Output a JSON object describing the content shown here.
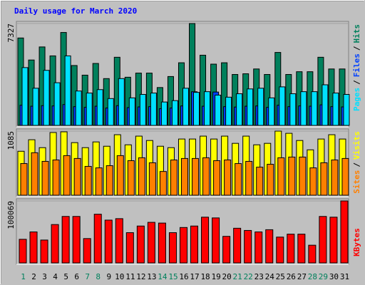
{
  "title": "Daily usage for March 2020",
  "legend_separator": "/",
  "chart_data": [
    {
      "type": "bar",
      "ylim": [
        0,
        7327
      ],
      "yticks": [
        7327
      ],
      "series": [
        {
          "name": "Hits",
          "color": "#00805c",
          "values": [
            6287,
            4703,
            5643,
            5000,
            6683,
            4307,
            3614,
            4455,
            3366,
            4901,
            3465,
            3762,
            3762,
            2723,
            3515,
            4505,
            7327,
            5049,
            4406,
            4505,
            3663,
            3713,
            4059,
            3663,
            5247,
            3663,
            3861,
            3861,
            4901,
            4059,
            4059
          ]
        },
        {
          "name": "Files",
          "color": "#0040ff",
          "values": [
            1450,
            1380,
            1420,
            1400,
            1500,
            1350,
            1300,
            1380,
            1250,
            1420,
            1280,
            1330,
            1350,
            1200,
            1250,
            1400,
            2420,
            1380,
            2400,
            1350,
            1320,
            1380,
            1400,
            1300,
            1450,
            1350,
            1400,
            1380,
            1480,
            1350,
            1330
          ]
        },
        {
          "name": "Pages",
          "color": "#00e0ff",
          "values": [
            4158,
            2673,
            3960,
            3069,
            5000,
            2475,
            2327,
            2574,
            1931,
            3366,
            1980,
            2228,
            2327,
            1683,
            1782,
            2673,
            2376,
            2426,
            2178,
            2030,
            2277,
            2624,
            2673,
            1980,
            2772,
            2277,
            2426,
            2426,
            2921,
            2327,
            2228
          ]
        }
      ]
    },
    {
      "type": "bar",
      "ylim": [
        0,
        1085
      ],
      "yticks": [
        1085
      ],
      "series": [
        {
          "name": "Visits",
          "color": "#ffff00",
          "values": [
            744,
            939,
            805,
            1061,
            1073,
            890,
            805,
            902,
            829,
            1024,
            853,
            1000,
            926,
            829,
            805,
            951,
            951,
            1000,
            951,
            1000,
            878,
            1000,
            853,
            878,
            1085,
            1048,
            926,
            768,
            951,
            1024,
            951
          ]
        },
        {
          "name": "Sites",
          "color": "#ff8000",
          "values": [
            536,
            719,
            573,
            597,
            670,
            622,
            488,
            463,
            500,
            670,
            585,
            634,
            549,
            402,
            597,
            622,
            622,
            634,
            585,
            597,
            536,
            573,
            475,
            524,
            634,
            646,
            646,
            463,
            549,
            597,
            622
          ]
        }
      ]
    },
    {
      "type": "bar",
      "ylim": [
        0,
        100069
      ],
      "yticks": [
        100069
      ],
      "categories": [
        "1",
        "2",
        "3",
        "4",
        "5",
        "6",
        "7",
        "8",
        "9",
        "10",
        "11",
        "12",
        "13",
        "14",
        "15",
        "16",
        "17",
        "18",
        "19",
        "20",
        "21",
        "22",
        "23",
        "24",
        "25",
        "26",
        "27",
        "28",
        "29",
        "30",
        "31"
      ],
      "category_colors": [
        "#00805c",
        "#000000",
        "#000000",
        "#000000",
        "#000000",
        "#000000",
        "#00805c",
        "#00805c",
        "#000000",
        "#000000",
        "#000000",
        "#000000",
        "#000000",
        "#00805c",
        "#00805c",
        "#000000",
        "#000000",
        "#000000",
        "#000000",
        "#000000",
        "#00805c",
        "#00805c",
        "#000000",
        "#000000",
        "#000000",
        "#000000",
        "#000000",
        "#00805c",
        "#00805c",
        "#000000",
        "#000000"
      ],
      "series": [
        {
          "name": "KBytes",
          "color": "#ff0000",
          "values": [
            38112,
            50022,
            36921,
            61932,
            75033,
            75033,
            39303,
            78606,
            69078,
            71460,
            48831,
            59550,
            65505,
            64314,
            48831,
            57168,
            59550,
            73842,
            72651,
            42876,
            55977,
            52404,
            50022,
            53595,
            41685,
            46449,
            46449,
            28584,
            75033,
            73842,
            100069
          ]
        }
      ]
    }
  ]
}
